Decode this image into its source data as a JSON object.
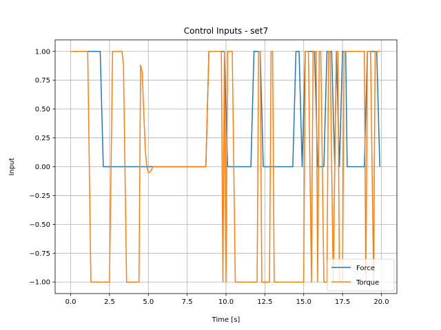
{
  "chart_data": {
    "type": "line",
    "title": "Control Inputs - set7",
    "xlabel": "Time [s]",
    "ylabel": "Input",
    "xlim": [
      -1.0,
      21.0
    ],
    "ylim": [
      -1.1,
      1.1
    ],
    "xticks": [
      0.0,
      2.5,
      5.0,
      7.5,
      10.0,
      12.5,
      15.0,
      17.5,
      20.0
    ],
    "xtick_labels": [
      "0.0",
      "2.5",
      "5.0",
      "7.5",
      "10.0",
      "12.5",
      "15.0",
      "17.5",
      "20.0"
    ],
    "yticks": [
      -1.0,
      -0.75,
      -0.5,
      -0.25,
      0.0,
      0.25,
      0.5,
      0.75,
      1.0
    ],
    "ytick_labels": [
      "−1.00",
      "−0.75",
      "−0.50",
      "−0.25",
      "0.00",
      "0.25",
      "0.50",
      "0.75",
      "1.00"
    ],
    "grid": true,
    "legend": "lower-right",
    "series": [
      {
        "name": "Force",
        "color": "#1f77b4",
        "x": [
          0.0,
          1.9,
          2.1,
          8.7,
          8.9,
          9.9,
          10.1,
          10.4,
          10.6,
          11.6,
          11.8,
          12.2,
          12.4,
          12.8,
          13.0,
          14.3,
          14.5,
          14.7,
          14.9,
          15.1,
          15.3,
          15.7,
          15.9,
          16.3,
          16.5,
          16.8,
          17.0,
          17.1,
          17.3,
          17.5,
          17.7,
          17.8,
          18.0,
          18.9,
          19.1,
          19.3,
          19.5,
          19.7,
          19.9
        ],
        "y": [
          1.0,
          1.0,
          0.0,
          0.0,
          1.0,
          1.0,
          0.0,
          0.0,
          0.0,
          0.0,
          1.0,
          1.0,
          0.0,
          0.0,
          0.0,
          0.0,
          1.0,
          1.0,
          0.0,
          1.0,
          1.0,
          1.0,
          0.0,
          0.0,
          1.0,
          1.0,
          0.0,
          1.0,
          0.0,
          1.0,
          1.0,
          0.0,
          0.0,
          0.0,
          1.0,
          1.0,
          1.0,
          1.0,
          0.0
        ]
      },
      {
        "name": "Torque",
        "color": "#ff7f0e",
        "x": [
          0.0,
          1.1,
          1.3,
          2.5,
          2.7,
          3.3,
          3.4,
          3.6,
          4.4,
          4.5,
          4.6,
          4.8,
          4.9,
          5.0,
          5.1,
          5.3,
          5.5,
          8.7,
          8.9,
          9.7,
          9.8,
          9.9,
          10.0,
          10.1,
          10.2,
          10.4,
          10.6,
          12.0,
          12.1,
          12.2,
          12.3,
          12.8,
          12.9,
          13.0,
          13.1,
          15.0,
          15.1,
          15.3,
          15.5,
          15.6,
          15.8,
          15.9,
          16.0,
          16.1,
          16.3,
          16.5,
          16.6,
          16.7,
          16.9,
          17.1,
          17.2,
          17.3,
          17.5,
          17.6,
          17.8,
          18.9,
          19.0,
          19.1,
          19.3,
          19.5,
          19.6,
          19.7,
          19.9
        ],
        "y": [
          1.0,
          1.0,
          -1.0,
          -1.0,
          1.0,
          1.0,
          0.88,
          -1.0,
          -1.0,
          0.88,
          0.82,
          0.15,
          0.0,
          -0.05,
          -0.05,
          0.0,
          0.0,
          0.0,
          1.0,
          1.0,
          -1.0,
          1.0,
          -1.0,
          1.0,
          1.0,
          1.0,
          -1.0,
          -1.0,
          1.0,
          1.0,
          -1.0,
          -1.0,
          1.0,
          1.0,
          -1.0,
          -1.0,
          1.0,
          1.0,
          -1.0,
          1.0,
          1.0,
          -1.0,
          1.0,
          1.0,
          -1.0,
          -1.0,
          1.0,
          1.0,
          -1.0,
          1.0,
          1.0,
          -1.0,
          -1.0,
          1.0,
          1.0,
          1.0,
          -1.0,
          1.0,
          1.0,
          -1.0,
          1.0,
          1.0,
          1.0
        ]
      }
    ]
  }
}
